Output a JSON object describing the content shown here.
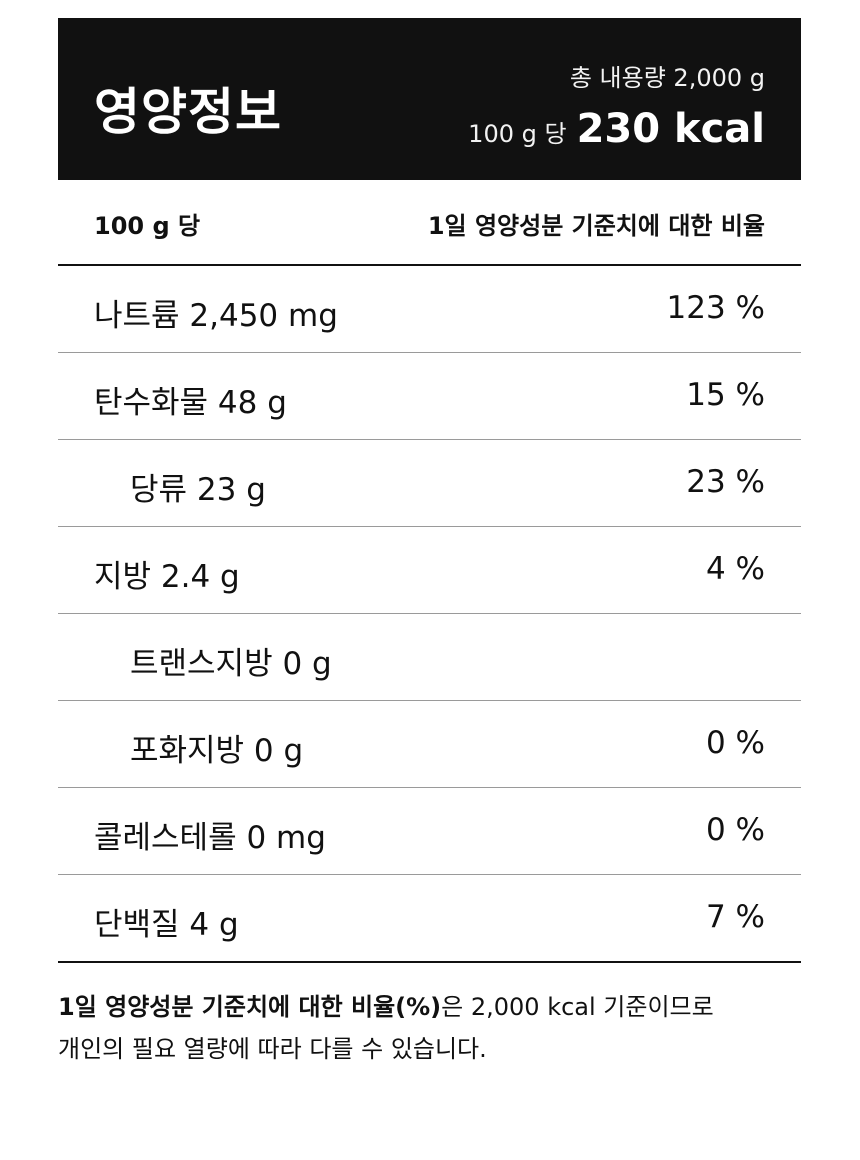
{
  "header": {
    "title": "영양정보",
    "total": "총 내용량 2,000 g",
    "per_label": "100 g 당",
    "kcal": "230 kcal"
  },
  "subheader": {
    "left": "100 g 당",
    "right": "1일 영양성분 기준치에 대한 비율"
  },
  "rows": [
    {
      "name": "나트륨 2,450 mg",
      "pct": "123 %"
    },
    {
      "name": "탄수화물 48 g",
      "pct": "15 %"
    },
    {
      "name": "당류 23 g",
      "pct": "23 %"
    },
    {
      "name": "지방 2.4 g",
      "pct": "4 %"
    },
    {
      "name": "트랜스지방 0 g",
      "pct": ""
    },
    {
      "name": "포화지방 0 g",
      "pct": "0 %"
    },
    {
      "name": "콜레스테롤 0 mg",
      "pct": "0 %"
    },
    {
      "name": "단백질 4 g",
      "pct": "7 %"
    }
  ],
  "footnote": {
    "bold": "1일 영양성분 기준치에 대한 비율(%)",
    "line1_rest": "은 2,000 kcal 기준이므로",
    "line2": "개인의 필요 열량에 따라 다를 수 있습니다."
  }
}
